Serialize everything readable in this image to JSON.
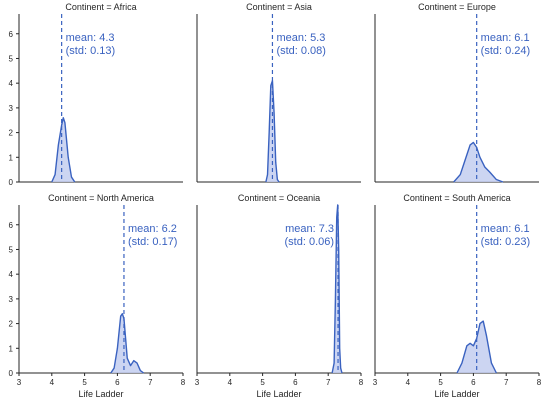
{
  "figure": {
    "xlabel": "Life Ladder",
    "x_ticks": [
      "3",
      "4",
      "5",
      "6",
      "7",
      "8"
    ],
    "y_ticks": [
      "0",
      "1",
      "2",
      "3",
      "4",
      "5",
      "6"
    ]
  },
  "colors": {
    "line": "#3a62c0",
    "fill": "#c3cef0",
    "axis": "#262626"
  },
  "chart_data": [
    {
      "type": "area",
      "title": "Continent = Africa",
      "xlabel": "",
      "xlim": [
        3,
        8
      ],
      "ylim": [
        0,
        6.8
      ],
      "mean": 4.3,
      "std": 0.13,
      "mean_label": "mean: 4.3",
      "std_label": "(std: 0.13)",
      "x": [
        4.0,
        4.1,
        4.2,
        4.3,
        4.35,
        4.4,
        4.5,
        4.6,
        4.7
      ],
      "y": [
        0.0,
        0.3,
        1.5,
        2.3,
        2.6,
        2.4,
        1.0,
        0.2,
        0.0
      ]
    },
    {
      "type": "area",
      "title": "Continent = Asia",
      "xlabel": "",
      "xlim": [
        3,
        8
      ],
      "ylim": [
        0,
        6.8
      ],
      "mean": 5.3,
      "std": 0.08,
      "mean_label": "mean: 5.3",
      "std_label": "(std: 0.08)",
      "x": [
        5.1,
        5.15,
        5.2,
        5.25,
        5.3,
        5.35,
        5.4,
        5.45,
        5.5
      ],
      "y": [
        0.0,
        0.3,
        2.0,
        3.9,
        4.1,
        2.8,
        0.8,
        0.1,
        0.0
      ]
    },
    {
      "type": "area",
      "title": "Continent = Europe",
      "xlabel": "",
      "xlim": [
        3,
        8
      ],
      "ylim": [
        0,
        6.8
      ],
      "mean": 6.1,
      "std": 0.24,
      "mean_label": "mean: 6.1",
      "std_label": "(std: 0.24)",
      "x": [
        5.4,
        5.6,
        5.75,
        5.9,
        6.0,
        6.1,
        6.2,
        6.35,
        6.5,
        6.7,
        6.9
      ],
      "y": [
        0.0,
        0.3,
        0.9,
        1.5,
        1.6,
        1.4,
        1.0,
        0.6,
        0.4,
        0.1,
        0.0
      ]
    },
    {
      "type": "area",
      "title": "Continent = North America",
      "xlabel": "Life Ladder",
      "xlim": [
        3,
        8
      ],
      "ylim": [
        0,
        6.8
      ],
      "mean": 6.2,
      "std": 0.17,
      "mean_label": "mean: 6.2",
      "std_label": "(std: 0.17)",
      "x": [
        5.8,
        5.9,
        6.0,
        6.1,
        6.15,
        6.2,
        6.3,
        6.4,
        6.5,
        6.6,
        6.7,
        6.8
      ],
      "y": [
        0.0,
        0.2,
        1.0,
        2.3,
        2.4,
        2.2,
        0.6,
        0.3,
        0.5,
        0.4,
        0.1,
        0.0
      ]
    },
    {
      "type": "area",
      "title": "Continent = Oceania",
      "xlabel": "Life Ladder",
      "xlim": [
        3,
        8
      ],
      "ylim": [
        0,
        6.8
      ],
      "mean": 7.3,
      "std": 0.06,
      "mean_label": "mean: 7.3",
      "std_label": "(std: 0.06)",
      "x": [
        7.12,
        7.18,
        7.22,
        7.26,
        7.29,
        7.32,
        7.35,
        7.38,
        7.42
      ],
      "y": [
        0.0,
        0.4,
        3.0,
        6.3,
        6.8,
        5.0,
        1.0,
        0.2,
        0.0
      ]
    },
    {
      "type": "area",
      "title": "Continent = South America",
      "xlabel": "Life Ladder",
      "xlim": [
        3,
        8
      ],
      "ylim": [
        0,
        6.8
      ],
      "mean": 6.1,
      "std": 0.23,
      "mean_label": "mean: 6.1",
      "std_label": "(std: 0.23)",
      "x": [
        5.5,
        5.65,
        5.8,
        5.9,
        6.0,
        6.1,
        6.2,
        6.3,
        6.4,
        6.55,
        6.7
      ],
      "y": [
        0.0,
        0.4,
        1.1,
        1.2,
        1.1,
        1.4,
        2.0,
        2.1,
        1.5,
        0.4,
        0.0
      ]
    }
  ]
}
